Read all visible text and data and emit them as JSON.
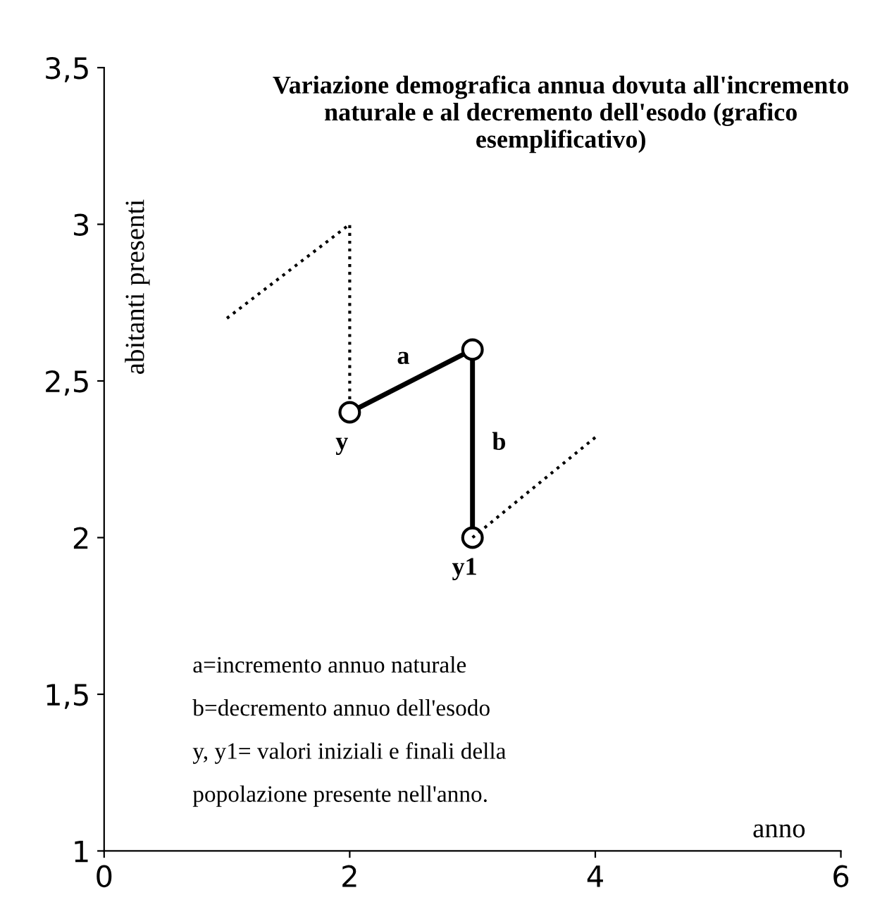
{
  "chart_data": {
    "type": "line",
    "title": "Variazione demografica annua dovuta all'incremento naturale e al decremento dell'esodo (grafico esemplificativo)",
    "xlabel": "anno",
    "ylabel": "abitanti presenti",
    "series": [
      {
        "color": "#000000",
        "x": [
          1,
          2,
          2
        ],
        "values": [
          2.7,
          3.0,
          2.4
        ],
        "line_style": "dotted",
        "marker": "none"
      },
      {
        "color": "#000000",
        "x": [
          2,
          3,
          3
        ],
        "values": [
          2.4,
          2.6,
          2.0
        ],
        "line_style": "solid",
        "marker": "circle"
      },
      {
        "color": "#000000",
        "x": [
          3,
          4
        ],
        "values": [
          2.0,
          2.32
        ],
        "line_style": "dotted",
        "marker": "none"
      }
    ],
    "xlim": [
      0,
      6
    ],
    "xticks": [
      0,
      2,
      4,
      6
    ],
    "ylim": [
      1,
      3.5
    ],
    "yticks": [
      1,
      {
        "value": 1.5,
        "label": "1,5"
      },
      2,
      {
        "value": 2.5,
        "label": "2,5"
      },
      3,
      {
        "value": 3.5,
        "label": "3,5"
      }
    ],
    "grid": false,
    "legend": false,
    "annotations": [
      {
        "text": "a",
        "x": 2.5,
        "y": 2.5
      },
      {
        "text": "b",
        "x": 3,
        "y": 2.3
      },
      {
        "text": "y",
        "x": 2,
        "y": 2.4
      },
      {
        "text": "y1",
        "x": 3,
        "y": 2.0
      },
      "a=incremento annuo naturale",
      "b=decremento annuo dell'esodo",
      "y, y1= valori iniziali e finali della",
      "popolazione presente nell'anno."
    ]
  }
}
